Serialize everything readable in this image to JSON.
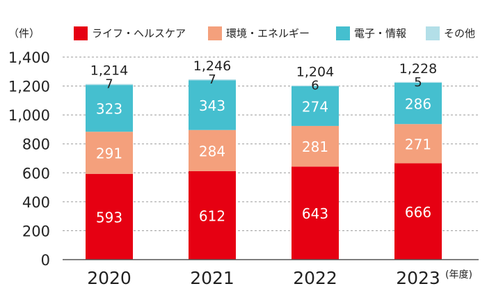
{
  "unit_label": "（件）",
  "period_label": "(年度)",
  "colors": {
    "life_health": "#e60012",
    "environment_energy": "#f4a07c",
    "electronics_info": "#45bfcf",
    "other": "#b3dfe8",
    "grid": "#9a9a9a",
    "axis": "#555555"
  },
  "chart_data": {
    "type": "bar",
    "stacked": true,
    "categories": [
      "2020",
      "2021",
      "2022",
      "2023"
    ],
    "series": [
      {
        "name": "ライフ・ヘルスケア",
        "color": "#e60012",
        "values": [
          593,
          612,
          643,
          666
        ]
      },
      {
        "name": "環境・エネルギー",
        "color": "#f4a07c",
        "values": [
          291,
          284,
          281,
          271
        ]
      },
      {
        "name": "電子・情報",
        "color": "#45bfcf",
        "values": [
          323,
          343,
          274,
          286
        ]
      },
      {
        "name": "その他",
        "color": "#b3dfe8",
        "values": [
          7,
          7,
          6,
          5
        ]
      }
    ],
    "totals": [
      1214,
      1246,
      1204,
      1228
    ],
    "total_labels": [
      "1,214",
      "1,246",
      "1,204",
      "1,228"
    ],
    "ylim": [
      0,
      1400
    ],
    "yticks": [
      0,
      200,
      400,
      600,
      800,
      1000,
      1200,
      1400
    ],
    "ytick_labels": [
      "0",
      "200",
      "400",
      "600",
      "800",
      "1,000",
      "1,200",
      "1,400"
    ],
    "grid": true,
    "legend_position": "top"
  }
}
